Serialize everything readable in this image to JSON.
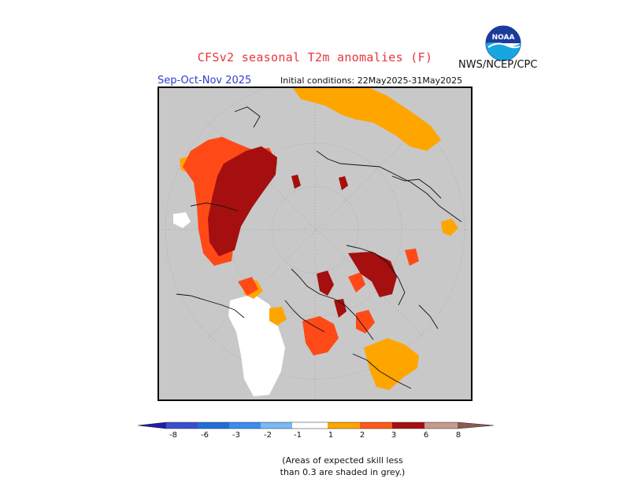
{
  "header": {
    "title": "CFSv2 seasonal T2m anomalies (F)",
    "credit": "NWS/NCEP/CPC",
    "logo_text": "NOAA",
    "season": "Sep-Oct-Nov 2025",
    "initial_conditions": "Initial conditions: 22May2025-31May2025"
  },
  "legend": {
    "labels": [
      "-8",
      "-6",
      "-3",
      "-2",
      "-1",
      "1",
      "2",
      "3",
      "6",
      "8"
    ],
    "colors": [
      "#1f1ea8",
      "#3a4ecf",
      "#1f6fd8",
      "#3b8ef0",
      "#7bb8f5",
      "#ffffff",
      "#ffa500",
      "#ff5a18",
      "#e82510",
      "#a50f0f",
      "#c79a8c",
      "#8a5a50"
    ]
  },
  "note": {
    "line1": "(Areas of expected skill less",
    "line2": "than 0.3 are shaded in grey.)"
  },
  "colors": {
    "title": "#e8363a",
    "season": "#2b3cd0",
    "no_skill": "#c8c8c8",
    "near_normal": "#ffffff",
    "orange": "#ffa500",
    "red_orange": "#ff4a18",
    "dark_red": "#a50f0f"
  }
}
